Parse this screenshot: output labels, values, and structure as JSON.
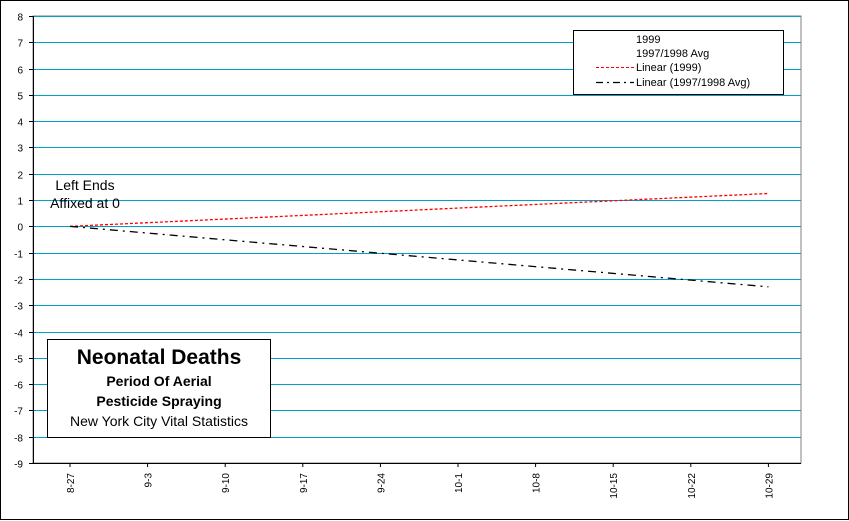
{
  "chart_data": {
    "type": "line",
    "categories": [
      "8-27",
      "9-3",
      "9-10",
      "9-17",
      "9-24",
      "10-1",
      "10-8",
      "10-15",
      "10-22",
      "10-29"
    ],
    "ylim": [
      -9,
      8
    ],
    "yticks": [
      8,
      7,
      6,
      5,
      4,
      3,
      2,
      1,
      0,
      -1,
      -2,
      -3,
      -4,
      -5,
      -6,
      -7,
      -8,
      -9
    ],
    "grid": true,
    "legend_position": "top-right",
    "legend": [
      "1999",
      "1997/1998 Avg",
      "Linear (1999)",
      "Linear (1997/1998 Avg)"
    ],
    "series": [
      {
        "name": "Linear (1999)",
        "style": "dotted",
        "color": "#ff0000",
        "x": [
          "8-27",
          "10-29"
        ],
        "values": [
          0,
          1.25
        ]
      },
      {
        "name": "Linear (1997/1998 Avg)",
        "style": "dash-dot",
        "color": "#000000",
        "x": [
          "8-27",
          "10-29"
        ],
        "values": [
          0,
          -2.3
        ]
      }
    ],
    "annotation": [
      "Left Ends",
      "Affixed at 0"
    ],
    "title_box": {
      "title": "Neonatal Deaths",
      "subtitle1": "Period Of Aerial",
      "subtitle2": "Pesticide Spraying",
      "source": "New York City Vital Statistics"
    },
    "colors": {
      "grid": "#00a0c8",
      "axis": "#808080",
      "linear_1999": "#ff0000",
      "linear_avg": "#000000"
    }
  }
}
